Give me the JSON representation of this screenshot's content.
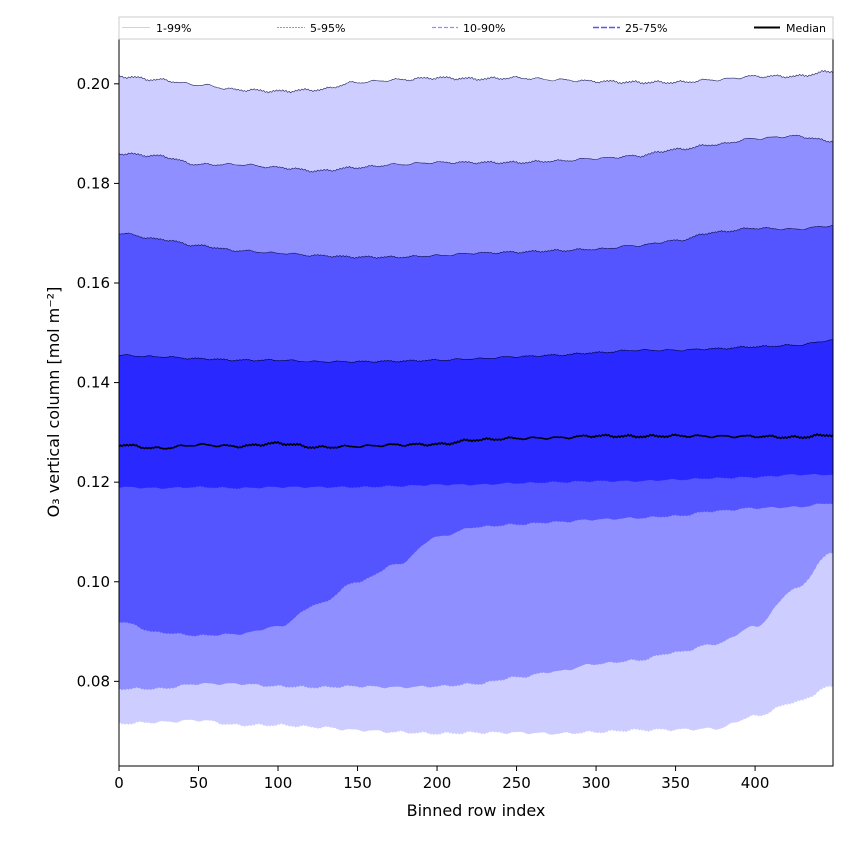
{
  "chart_data": {
    "type": "area",
    "xlabel": "Binned row index",
    "ylabel": "O₃ vertical column [mol m⁻²]",
    "xlim": [
      0,
      449
    ],
    "ylim": [
      0.063,
      0.209
    ],
    "xticks": [
      0,
      50,
      100,
      150,
      200,
      250,
      300,
      350,
      400
    ],
    "yticks": [
      0.08,
      0.1,
      0.12,
      0.14,
      0.16,
      0.18,
      0.2
    ],
    "grid": false,
    "legend_position": "top",
    "colors": {
      "band_1_99": "#cdcdff",
      "band_5_95": "#8f8fff",
      "band_10_90": "#5555ff",
      "band_25_75": "#2929ff",
      "median": "#000000"
    },
    "legend": [
      "1-99%",
      "5-95%",
      "10-90%",
      "25-75%",
      "Median"
    ],
    "x": [
      0,
      25,
      50,
      75,
      100,
      125,
      150,
      175,
      200,
      225,
      250,
      275,
      300,
      325,
      350,
      375,
      400,
      425,
      449
    ],
    "series": [
      {
        "name": "Median",
        "values": [
          0.1275,
          0.1268,
          0.1275,
          0.1272,
          0.1278,
          0.127,
          0.1272,
          0.1275,
          0.1276,
          0.1285,
          0.1288,
          0.1289,
          0.1293,
          0.1292,
          0.1293,
          0.1292,
          0.1292,
          0.129,
          0.1295
        ]
      },
      {
        "name": "1-99%",
        "lower": [
          0.0715,
          0.0718,
          0.0722,
          0.0712,
          0.0712,
          0.0708,
          0.0702,
          0.0698,
          0.0695,
          0.0697,
          0.0697,
          0.0695,
          0.0698,
          0.0702,
          0.0703,
          0.0705,
          0.073,
          0.0758,
          0.079
        ],
        "upper": [
          0.2015,
          0.2008,
          0.1998,
          0.1988,
          0.1985,
          0.1988,
          0.2003,
          0.2008,
          0.2012,
          0.201,
          0.2012,
          0.2008,
          0.2005,
          0.2003,
          0.2003,
          0.2008,
          0.2015,
          0.2015,
          0.2025
        ]
      },
      {
        "name": "5-95%",
        "lower": [
          0.0785,
          0.0785,
          0.0795,
          0.0795,
          0.079,
          0.0788,
          0.079,
          0.0788,
          0.079,
          0.0795,
          0.0808,
          0.082,
          0.0835,
          0.0842,
          0.0858,
          0.0875,
          0.091,
          0.0985,
          0.106
        ],
        "upper": [
          0.186,
          0.1855,
          0.1838,
          0.1838,
          0.1832,
          0.1825,
          0.1832,
          0.1838,
          0.1842,
          0.1842,
          0.1842,
          0.1845,
          0.185,
          0.1855,
          0.1868,
          0.1878,
          0.189,
          0.1895,
          0.1885
        ]
      },
      {
        "name": "10-90%",
        "lower": [
          0.092,
          0.0898,
          0.0892,
          0.0895,
          0.091,
          0.0955,
          0.1,
          0.1035,
          0.109,
          0.111,
          0.1115,
          0.112,
          0.1125,
          0.1128,
          0.1132,
          0.1142,
          0.1148,
          0.115,
          0.1158
        ],
        "upper": [
          0.17,
          0.1688,
          0.1675,
          0.1665,
          0.166,
          0.1655,
          0.1652,
          0.1652,
          0.1655,
          0.166,
          0.1662,
          0.1665,
          0.1668,
          0.1675,
          0.1685,
          0.1702,
          0.171,
          0.1708,
          0.1715
        ]
      },
      {
        "name": "25-75%",
        "lower": [
          0.119,
          0.1188,
          0.119,
          0.1188,
          0.119,
          0.119,
          0.119,
          0.1192,
          0.1195,
          0.1195,
          0.1198,
          0.12,
          0.1202,
          0.1202,
          0.1205,
          0.1208,
          0.121,
          0.1215,
          0.1215
        ],
        "upper": [
          0.1455,
          0.1452,
          0.1448,
          0.1445,
          0.1445,
          0.1442,
          0.1442,
          0.1443,
          0.1445,
          0.1448,
          0.1452,
          0.1455,
          0.146,
          0.1465,
          0.1465,
          0.1468,
          0.1472,
          0.1475,
          0.1485
        ]
      }
    ]
  }
}
